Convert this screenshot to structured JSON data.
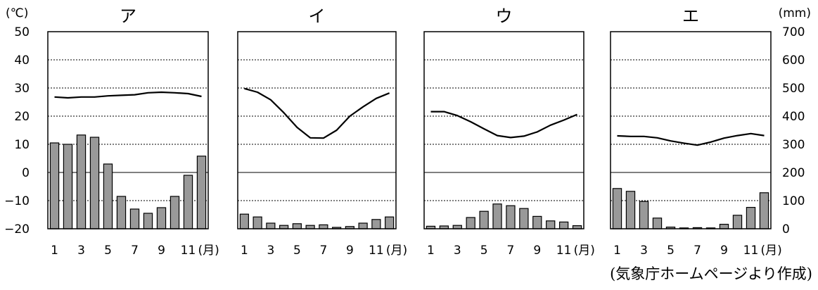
{
  "left_unit": "(℃)",
  "right_unit": "(mm)",
  "source": "(気象庁ホームページより作成)",
  "chart_data": [
    {
      "type": "bar",
      "title": "ア",
      "categories": [
        "1",
        "2",
        "3",
        "4",
        "5",
        "6",
        "7",
        "8",
        "9",
        "10",
        "11",
        "12"
      ],
      "tick_labels": [
        "1",
        "3",
        "5",
        "7",
        "9",
        "11"
      ],
      "month_unit": "(月)",
      "temp_axis": {
        "ylim": [
          -20,
          50
        ],
        "ticks": [
          "50",
          "40",
          "30",
          "20",
          "10",
          "0",
          "−10",
          "−20"
        ]
      },
      "precip_axis": {
        "ylim": [
          0,
          700
        ],
        "ticks": [
          "700",
          "600",
          "500",
          "400",
          "300",
          "200",
          "100",
          "0"
        ]
      },
      "grid": true,
      "series": [
        {
          "kind": "line",
          "values": [
            26.8,
            26.5,
            26.8,
            26.8,
            27.2,
            27.4,
            27.6,
            28.3,
            28.5,
            28.3,
            28.0,
            27.0
          ]
        },
        {
          "kind": "bar",
          "values": [
            305,
            300,
            333,
            325,
            230,
            115,
            70,
            55,
            75,
            115,
            190,
            258
          ]
        }
      ]
    },
    {
      "type": "bar",
      "title": "イ",
      "categories": [
        "1",
        "2",
        "3",
        "4",
        "5",
        "6",
        "7",
        "8",
        "9",
        "10",
        "11",
        "12"
      ],
      "tick_labels": [
        "1",
        "3",
        "5",
        "7",
        "9",
        "11"
      ],
      "month_unit": "(月)",
      "temp_axis": {
        "ylim": [
          -20,
          50
        ]
      },
      "precip_axis": {
        "ylim": [
          0,
          700
        ]
      },
      "grid": true,
      "series": [
        {
          "kind": "line",
          "values": [
            29.8,
            28.5,
            25.8,
            21.2,
            16.0,
            12.3,
            12.2,
            15.0,
            20.0,
            23.3,
            26.3,
            28.2
          ]
        },
        {
          "kind": "bar",
          "values": [
            52,
            42,
            20,
            12,
            18,
            12,
            14,
            5,
            8,
            20,
            33,
            42
          ]
        }
      ]
    },
    {
      "type": "bar",
      "title": "ウ",
      "categories": [
        "1",
        "2",
        "3",
        "4",
        "5",
        "6",
        "7",
        "8",
        "9",
        "10",
        "11",
        "12"
      ],
      "tick_labels": [
        "1",
        "3",
        "5",
        "7",
        "9",
        "11"
      ],
      "month_unit": "(月)",
      "temp_axis": {
        "ylim": [
          -20,
          50
        ]
      },
      "precip_axis": {
        "ylim": [
          0,
          700
        ]
      },
      "grid": true,
      "series": [
        {
          "kind": "line",
          "values": [
            21.6,
            21.6,
            20.2,
            18.0,
            15.5,
            13.1,
            12.4,
            12.9,
            14.4,
            16.8,
            18.6,
            20.6
          ]
        },
        {
          "kind": "bar",
          "values": [
            9,
            10,
            12,
            40,
            62,
            88,
            82,
            72,
            44,
            28,
            24,
            11
          ]
        }
      ]
    },
    {
      "type": "bar",
      "title": "エ",
      "categories": [
        "1",
        "2",
        "3",
        "4",
        "5",
        "6",
        "7",
        "8",
        "9",
        "10",
        "11",
        "12"
      ],
      "tick_labels": [
        "1",
        "3",
        "5",
        "7",
        "9",
        "11"
      ],
      "month_unit": "(月)",
      "temp_axis": {
        "ylim": [
          -20,
          50
        ]
      },
      "precip_axis": {
        "ylim": [
          0,
          700
        ]
      },
      "grid": true,
      "series": [
        {
          "kind": "line",
          "values": [
            13.0,
            12.8,
            12.8,
            12.3,
            11.2,
            10.4,
            9.7,
            10.8,
            12.2,
            13.1,
            13.8,
            13.1
          ]
        },
        {
          "kind": "bar",
          "values": [
            143,
            133,
            97,
            38,
            6,
            3,
            4,
            3,
            16,
            48,
            76,
            128
          ]
        }
      ]
    }
  ]
}
